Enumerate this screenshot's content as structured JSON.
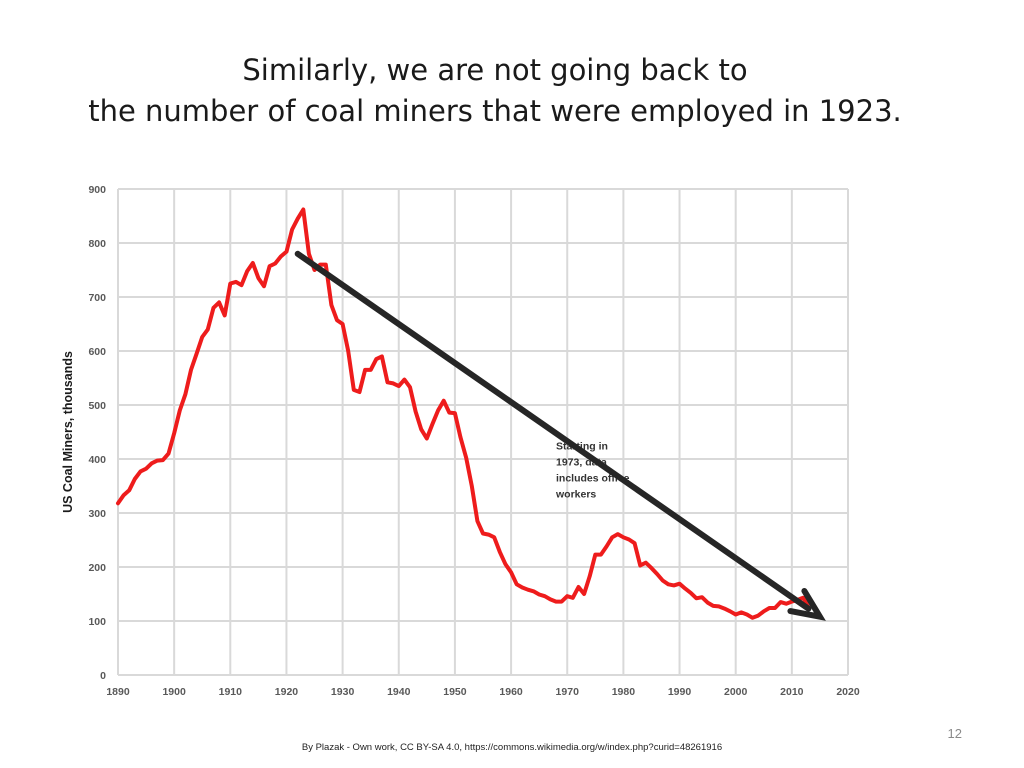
{
  "slide": {
    "title_line1": "Similarly, we are not going back to",
    "title_line2": "the number of coal miners that were employed in 1923.",
    "page_number": "12",
    "credit": "By Plazak - Own work, CC BY-SA 4.0, https://commons.wikimedia.org/w/index.php?curid=48261916"
  },
  "chart_data": {
    "type": "line",
    "title": "",
    "xlabel": "",
    "ylabel": "US Coal Miners, thousands",
    "xlim": [
      1890,
      2020
    ],
    "ylim": [
      0,
      900
    ],
    "x_ticks": [
      1890,
      1900,
      1910,
      1920,
      1930,
      1940,
      1950,
      1960,
      1970,
      1980,
      1990,
      2000,
      2010,
      2020
    ],
    "y_ticks": [
      0,
      100,
      200,
      300,
      400,
      500,
      600,
      700,
      800,
      900
    ],
    "grid": true,
    "series": [
      {
        "color": "#ee1c1c",
        "x": [
          1890,
          1891,
          1892,
          1893,
          1894,
          1895,
          1896,
          1897,
          1898,
          1899,
          1900,
          1901,
          1902,
          1903,
          1904,
          1905,
          1906,
          1907,
          1908,
          1909,
          1910,
          1911,
          1912,
          1913,
          1914,
          1915,
          1916,
          1917,
          1918,
          1919,
          1920,
          1921,
          1922,
          1923,
          1924,
          1925,
          1926,
          1927,
          1928,
          1929,
          1930,
          1931,
          1932,
          1933,
          1934,
          1935,
          1936,
          1937,
          1938,
          1939,
          1940,
          1941,
          1942,
          1943,
          1944,
          1945,
          1946,
          1947,
          1948,
          1949,
          1950,
          1951,
          1952,
          1953,
          1954,
          1955,
          1956,
          1957,
          1958,
          1959,
          1960,
          1961,
          1962,
          1963,
          1964,
          1965,
          1966,
          1967,
          1968,
          1969,
          1970,
          1971,
          1972,
          1973,
          1974,
          1975,
          1976,
          1977,
          1978,
          1979,
          1980,
          1981,
          1982,
          1983,
          1984,
          1985,
          1986,
          1987,
          1988,
          1989,
          1990,
          1991,
          1992,
          1993,
          1994,
          1995,
          1996,
          1997,
          1998,
          1999,
          2000,
          2001,
          2002,
          2003,
          2004,
          2005,
          2006,
          2007,
          2008,
          2009,
          2010,
          2011,
          2012,
          2013
        ],
        "y": [
          318,
          333,
          342,
          363,
          377,
          382,
          392,
          397,
          398,
          410,
          448,
          490,
          520,
          565,
          595,
          626,
          640,
          680,
          690,
          666,
          725,
          728,
          722,
          748,
          763,
          735,
          720,
          757,
          762,
          775,
          784,
          825,
          845,
          862,
          780,
          750,
          760,
          760,
          685,
          657,
          650,
          600,
          528,
          524,
          565,
          565,
          585,
          590,
          542,
          540,
          535,
          547,
          533,
          488,
          455,
          438,
          465,
          490,
          508,
          486,
          485,
          440,
          402,
          350,
          285,
          262,
          260,
          255,
          228,
          205,
          190,
          168,
          162,
          158,
          155,
          149,
          146,
          140,
          136,
          136,
          146,
          143,
          163,
          150,
          183,
          223,
          223,
          238,
          255,
          261,
          255,
          251,
          244,
          203,
          208,
          198,
          187,
          175,
          168,
          166,
          169,
          160,
          152,
          142,
          144,
          134,
          128,
          127,
          123,
          118,
          112,
          116,
          112,
          106,
          110,
          118,
          124,
          124,
          135,
          132,
          136,
          139,
          143,
          124
        ]
      }
    ],
    "arrow": {
      "from": {
        "x": 1922,
        "y": 780
      },
      "to": {
        "x": 2015,
        "y": 108
      }
    },
    "annotations": [
      {
        "text": [
          "Starting in",
          "1973, data",
          "includes office",
          "workers"
        ],
        "x": 1968,
        "y": 418
      }
    ]
  }
}
